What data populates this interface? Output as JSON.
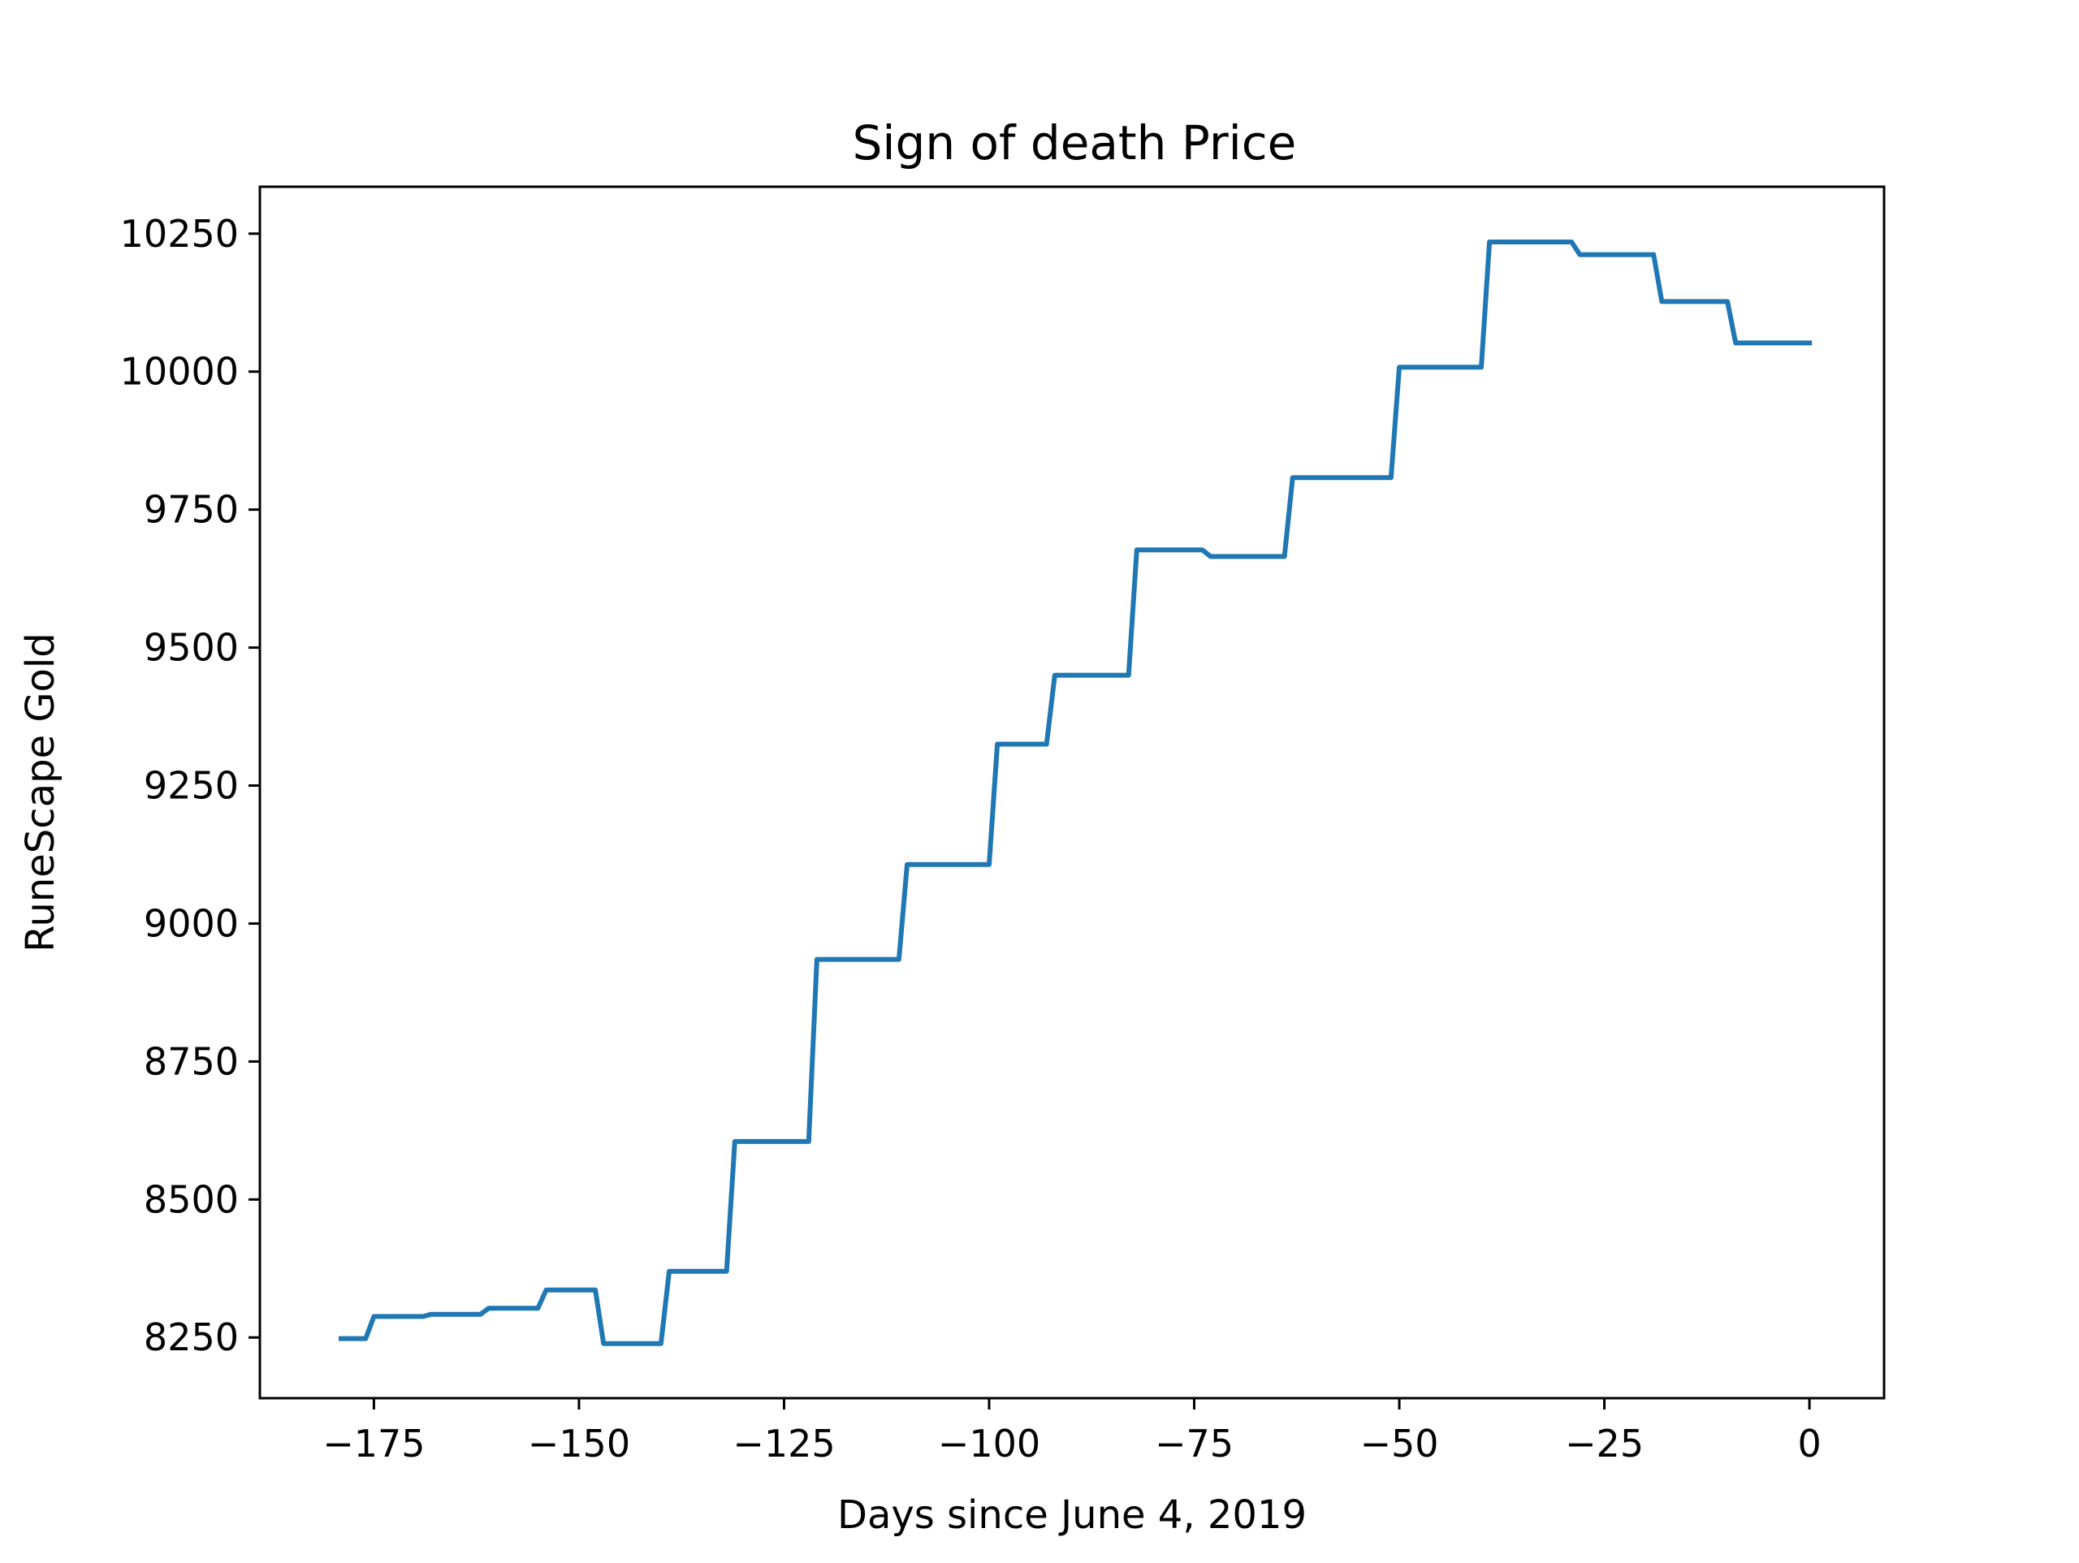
{
  "chart_data": {
    "type": "line",
    "title": "Sign of death Price",
    "xlabel": "Days since June 4, 2019",
    "ylabel": "RuneScape Gold",
    "xlim": [
      -188.9,
      9.1
    ],
    "ylim": [
      8140,
      10335
    ],
    "grid": false,
    "legend": "none",
    "line_color": "#1f77b4",
    "xticks": [
      -175,
      -150,
      -125,
      -100,
      -75,
      -50,
      -25,
      0
    ],
    "xtick_labels": [
      "−175",
      "−150",
      "−125",
      "−100",
      "−75",
      "−50",
      "−25",
      "0"
    ],
    "yticks": [
      8250,
      8500,
      8750,
      9000,
      9250,
      9500,
      9750,
      10000,
      10250
    ],
    "ytick_labels": [
      "8250",
      "8500",
      "8750",
      "9000",
      "9250",
      "9500",
      "9750",
      "10000",
      "10250"
    ],
    "series": [
      {
        "x": [
          -179,
          -176,
          -175,
          -169,
          -168,
          -162,
          -161,
          -155,
          -154,
          -148,
          -147,
          -140,
          -139,
          -132,
          -131,
          -122,
          -121,
          -111,
          -110,
          -100,
          -99,
          -93,
          -92,
          -83,
          -82,
          -74,
          -73,
          -64,
          -63,
          -51,
          -50,
          -40,
          -39,
          -29,
          -28,
          -19,
          -18,
          -10,
          -9,
          0
        ],
        "y": [
          8248,
          8248,
          8288,
          8288,
          8292,
          8292,
          8303,
          8303,
          8336,
          8336,
          8239,
          8239,
          8370,
          8370,
          8605,
          8605,
          8935,
          8935,
          9107,
          9107,
          9325,
          9325,
          9450,
          9450,
          9677,
          9677,
          9665,
          9665,
          9808,
          9808,
          10008,
          10008,
          10235,
          10235,
          10212,
          10212,
          10127,
          10127,
          10052,
          10052
        ]
      }
    ]
  }
}
